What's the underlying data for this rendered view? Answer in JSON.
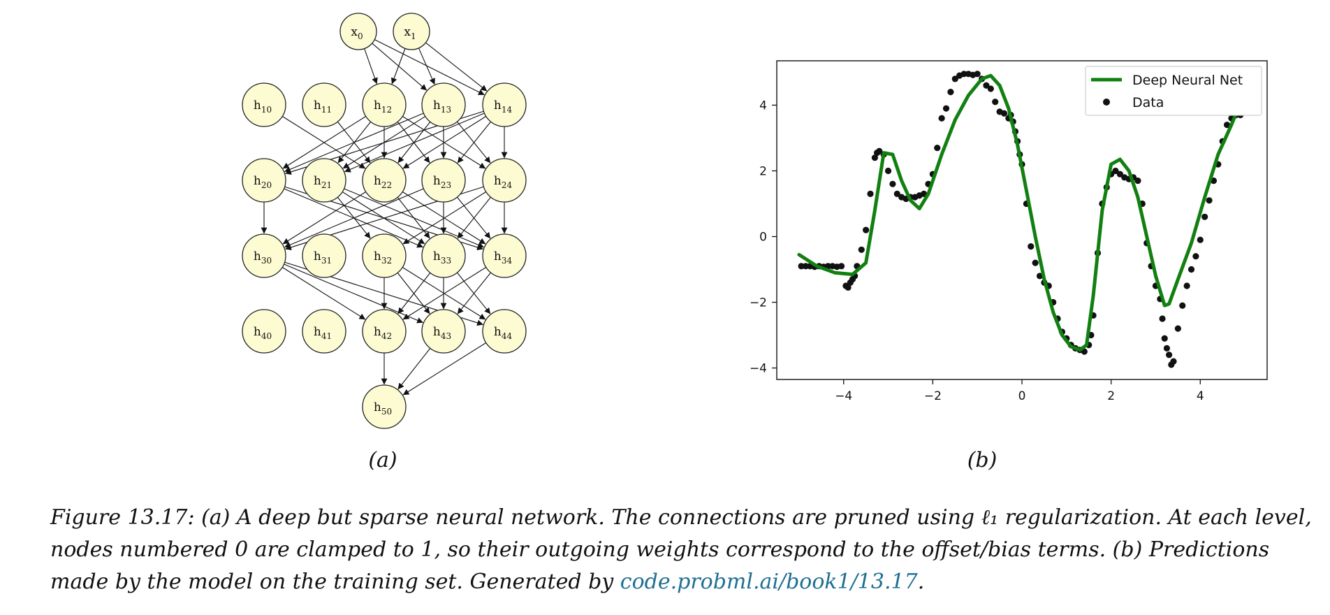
{
  "diagram": {
    "nodes": [
      {
        "id": "x0",
        "base": "x",
        "sub": "0"
      },
      {
        "id": "x1",
        "base": "x",
        "sub": "1"
      },
      {
        "id": "h10",
        "base": "h",
        "sub": "10"
      },
      {
        "id": "h11",
        "base": "h",
        "sub": "11"
      },
      {
        "id": "h12",
        "base": "h",
        "sub": "12"
      },
      {
        "id": "h13",
        "base": "h",
        "sub": "13"
      },
      {
        "id": "h14",
        "base": "h",
        "sub": "14"
      },
      {
        "id": "h20",
        "base": "h",
        "sub": "20"
      },
      {
        "id": "h21",
        "base": "h",
        "sub": "21"
      },
      {
        "id": "h22",
        "base": "h",
        "sub": "22"
      },
      {
        "id": "h23",
        "base": "h",
        "sub": "23"
      },
      {
        "id": "h24",
        "base": "h",
        "sub": "24"
      },
      {
        "id": "h30",
        "base": "h",
        "sub": "30"
      },
      {
        "id": "h31",
        "base": "h",
        "sub": "31"
      },
      {
        "id": "h32",
        "base": "h",
        "sub": "32"
      },
      {
        "id": "h33",
        "base": "h",
        "sub": "33"
      },
      {
        "id": "h34",
        "base": "h",
        "sub": "34"
      },
      {
        "id": "h40",
        "base": "h",
        "sub": "40"
      },
      {
        "id": "h41",
        "base": "h",
        "sub": "41"
      },
      {
        "id": "h42",
        "base": "h",
        "sub": "42"
      },
      {
        "id": "h43",
        "base": "h",
        "sub": "43"
      },
      {
        "id": "h44",
        "base": "h",
        "sub": "44"
      },
      {
        "id": "h50",
        "base": "h",
        "sub": "50"
      }
    ],
    "edges": [
      [
        "x0",
        "h12"
      ],
      [
        "x0",
        "h13"
      ],
      [
        "x0",
        "h14"
      ],
      [
        "x1",
        "h12"
      ],
      [
        "x1",
        "h13"
      ],
      [
        "x1",
        "h14"
      ],
      [
        "h10",
        "h22"
      ],
      [
        "h11",
        "h22"
      ],
      [
        "h12",
        "h20"
      ],
      [
        "h12",
        "h21"
      ],
      [
        "h12",
        "h22"
      ],
      [
        "h12",
        "h23"
      ],
      [
        "h12",
        "h24"
      ],
      [
        "h13",
        "h20"
      ],
      [
        "h13",
        "h21"
      ],
      [
        "h13",
        "h22"
      ],
      [
        "h13",
        "h23"
      ],
      [
        "h13",
        "h24"
      ],
      [
        "h14",
        "h20"
      ],
      [
        "h14",
        "h21"
      ],
      [
        "h14",
        "h22"
      ],
      [
        "h14",
        "h23"
      ],
      [
        "h14",
        "h24"
      ],
      [
        "h20",
        "h30"
      ],
      [
        "h20",
        "h33"
      ],
      [
        "h20",
        "h34"
      ],
      [
        "h21",
        "h32"
      ],
      [
        "h21",
        "h33"
      ],
      [
        "h21",
        "h34"
      ],
      [
        "h22",
        "h30"
      ],
      [
        "h22",
        "h33"
      ],
      [
        "h22",
        "h34"
      ],
      [
        "h23",
        "h30"
      ],
      [
        "h23",
        "h33"
      ],
      [
        "h23",
        "h34"
      ],
      [
        "h24",
        "h30"
      ],
      [
        "h24",
        "h32"
      ],
      [
        "h24",
        "h33"
      ],
      [
        "h24",
        "h34"
      ],
      [
        "h30",
        "h42"
      ],
      [
        "h30",
        "h43"
      ],
      [
        "h30",
        "h44"
      ],
      [
        "h32",
        "h42"
      ],
      [
        "h32",
        "h43"
      ],
      [
        "h32",
        "h44"
      ],
      [
        "h33",
        "h42"
      ],
      [
        "h33",
        "h43"
      ],
      [
        "h33",
        "h44"
      ],
      [
        "h34",
        "h42"
      ],
      [
        "h34",
        "h43"
      ],
      [
        "h42",
        "h50"
      ],
      [
        "h43",
        "h50"
      ],
      [
        "h44",
        "h50"
      ]
    ]
  },
  "chart_data": {
    "type": "scatter",
    "xlim": [
      -5.5,
      5.5
    ],
    "ylim": [
      -4.35,
      5.35
    ],
    "xticks": [
      -4,
      -2,
      0,
      2,
      4
    ],
    "xtick_labels": [
      "−4",
      "−2",
      "0",
      "2",
      "4"
    ],
    "yticks": [
      -4,
      -2,
      0,
      2,
      4
    ],
    "ytick_labels": [
      "−4",
      "−2",
      "0",
      "2",
      "4"
    ],
    "grid": false,
    "legend_position": "top-right",
    "legend": [
      "Deep Neural Net",
      "Data"
    ],
    "series": [
      {
        "name": "Deep Neural Net",
        "kind": "line",
        "color": "#118011",
        "x": [
          -5.0,
          -4.6,
          -4.2,
          -3.8,
          -3.5,
          -3.3,
          -3.1,
          -2.9,
          -2.7,
          -2.5,
          -2.3,
          -2.1,
          -1.8,
          -1.5,
          -1.2,
          -0.9,
          -0.7,
          -0.5,
          -0.3,
          -0.1,
          0.1,
          0.3,
          0.5,
          0.7,
          0.9,
          1.1,
          1.3,
          1.45,
          1.6,
          1.8,
          2.0,
          2.2,
          2.4,
          2.6,
          2.8,
          3.0,
          3.2,
          3.3,
          3.5,
          3.8,
          4.1,
          4.4,
          4.7,
          5.0
        ],
        "y": [
          -0.55,
          -0.9,
          -1.1,
          -1.15,
          -0.8,
          0.8,
          2.55,
          2.5,
          1.7,
          1.1,
          0.85,
          1.3,
          2.5,
          3.55,
          4.3,
          4.8,
          4.9,
          4.6,
          3.9,
          2.8,
          1.4,
          0.0,
          -1.3,
          -2.3,
          -3.0,
          -3.35,
          -3.45,
          -3.3,
          -1.8,
          0.8,
          2.2,
          2.35,
          2.0,
          1.2,
          0.0,
          -1.2,
          -2.1,
          -2.05,
          -1.3,
          -0.2,
          1.2,
          2.5,
          3.4,
          4.4
        ]
      },
      {
        "name": "Data",
        "kind": "scatter",
        "color": "#111111",
        "x": [
          -4.95,
          -4.85,
          -4.75,
          -4.65,
          -4.55,
          -4.45,
          -4.35,
          -4.25,
          -4.15,
          -4.05,
          -3.95,
          -3.9,
          -3.85,
          -3.8,
          -3.75,
          -3.7,
          -3.6,
          -3.5,
          -3.4,
          -3.3,
          -3.25,
          -3.2,
          -3.1,
          -3.0,
          -2.9,
          -2.8,
          -2.7,
          -2.6,
          -2.5,
          -2.4,
          -2.3,
          -2.2,
          -2.1,
          -2.0,
          -1.9,
          -1.8,
          -1.7,
          -1.6,
          -1.5,
          -1.4,
          -1.3,
          -1.2,
          -1.1,
          -1.0,
          -0.9,
          -0.8,
          -0.7,
          -0.6,
          -0.5,
          -0.4,
          -0.3,
          -0.25,
          -0.2,
          -0.15,
          -0.1,
          -0.05,
          0.0,
          0.1,
          0.2,
          0.3,
          0.4,
          0.5,
          0.6,
          0.7,
          0.8,
          0.9,
          1.0,
          1.1,
          1.2,
          1.3,
          1.4,
          1.5,
          1.55,
          1.6,
          1.7,
          1.8,
          1.9,
          2.0,
          2.1,
          2.2,
          2.3,
          2.4,
          2.5,
          2.6,
          2.7,
          2.8,
          2.9,
          3.0,
          3.1,
          3.15,
          3.2,
          3.25,
          3.3,
          3.35,
          3.4,
          3.5,
          3.6,
          3.7,
          3.8,
          3.9,
          4.0,
          4.1,
          4.2,
          4.3,
          4.4,
          4.5,
          4.6,
          4.7,
          4.8,
          4.9
        ],
        "y": [
          -0.9,
          -0.9,
          -0.9,
          -0.92,
          -0.9,
          -0.92,
          -0.9,
          -0.9,
          -0.92,
          -0.9,
          -1.5,
          -1.55,
          -1.4,
          -1.3,
          -1.2,
          -0.9,
          -0.4,
          0.2,
          1.3,
          2.4,
          2.55,
          2.6,
          2.5,
          2.0,
          1.6,
          1.3,
          1.2,
          1.15,
          1.2,
          1.2,
          1.25,
          1.3,
          1.6,
          1.9,
          2.7,
          3.6,
          3.9,
          4.4,
          4.8,
          4.9,
          4.95,
          4.95,
          4.92,
          4.95,
          4.8,
          4.6,
          4.5,
          4.1,
          3.8,
          3.75,
          3.6,
          3.7,
          3.5,
          3.2,
          2.9,
          2.5,
          2.2,
          1.0,
          -0.3,
          -0.8,
          -1.2,
          -1.4,
          -1.5,
          -2.0,
          -2.5,
          -2.9,
          -3.1,
          -3.3,
          -3.4,
          -3.45,
          -3.5,
          -3.3,
          -3.0,
          -2.4,
          -0.5,
          1.0,
          1.5,
          1.9,
          2.0,
          1.9,
          1.8,
          1.75,
          1.8,
          1.7,
          1.0,
          -0.2,
          -0.9,
          -1.5,
          -1.9,
          -2.5,
          -3.1,
          -3.4,
          -3.6,
          -3.9,
          -3.8,
          -2.8,
          -2.1,
          -1.5,
          -1.0,
          -0.6,
          -0.1,
          0.6,
          1.1,
          1.7,
          2.2,
          2.9,
          3.4,
          3.6,
          3.7,
          3.7
        ]
      }
    ]
  },
  "labels": {
    "panel_a": "(a)",
    "panel_b": "(b)"
  },
  "caption": {
    "text": "Figure 13.17: (a) A deep but sparse neural network. The connections are pruned using ℓ₁ regularization. At each level, nodes numbered 0 are clamped to 1, so their outgoing weights correspond to the offset/bias terms. (b) Predictions made by the model on the training set. Generated by ",
    "link": "code.probml.ai/book1/13.17",
    "end": "."
  }
}
